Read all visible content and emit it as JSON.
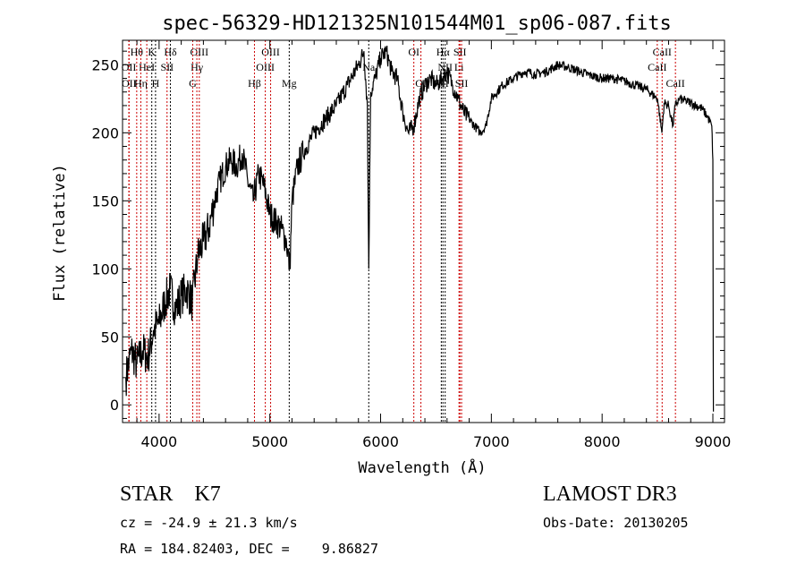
{
  "chart_data": {
    "type": "line",
    "title": "spec-56329-HD121325N101544M01_sp06-087.fits",
    "xlabel": "Wavelength (Å)",
    "ylabel": "Flux (relative)",
    "xlim": [
      3670,
      9105
    ],
    "ylim": [
      -13,
      268
    ],
    "xticks": [
      4000,
      5000,
      6000,
      7000,
      8000,
      9000
    ],
    "yticks": [
      0,
      50,
      100,
      150,
      200,
      250
    ],
    "grid": false,
    "series": [
      {
        "name": "spectrum",
        "color": "#000000",
        "points": [
          [
            3700,
            20
          ],
          [
            3750,
            40
          ],
          [
            3800,
            30
          ],
          [
            3850,
            40
          ],
          [
            3900,
            35
          ],
          [
            3950,
            55
          ],
          [
            4000,
            60
          ],
          [
            4050,
            75
          ],
          [
            4100,
            85
          ],
          [
            4150,
            70
          ],
          [
            4200,
            80
          ],
          [
            4250,
            85
          ],
          [
            4300,
            75
          ],
          [
            4350,
            110
          ],
          [
            4400,
            120
          ],
          [
            4450,
            130
          ],
          [
            4500,
            150
          ],
          [
            4550,
            165
          ],
          [
            4600,
            175
          ],
          [
            4650,
            180
          ],
          [
            4700,
            175
          ],
          [
            4750,
            185
          ],
          [
            4800,
            165
          ],
          [
            4850,
            150
          ],
          [
            4900,
            170
          ],
          [
            4950,
            160
          ],
          [
            5000,
            140
          ],
          [
            5100,
            130
          ],
          [
            5150,
            120
          ],
          [
            5180,
            100
          ],
          [
            5200,
            150
          ],
          [
            5250,
            175
          ],
          [
            5300,
            185
          ],
          [
            5400,
            200
          ],
          [
            5500,
            210
          ],
          [
            5600,
            220
          ],
          [
            5700,
            235
          ],
          [
            5800,
            250
          ],
          [
            5850,
            260
          ],
          [
            5880,
            220
          ],
          [
            5893,
            100
          ],
          [
            5910,
            230
          ],
          [
            5950,
            240
          ],
          [
            6000,
            255
          ],
          [
            6050,
            260
          ],
          [
            6100,
            245
          ],
          [
            6150,
            240
          ],
          [
            6200,
            215
          ],
          [
            6250,
            200
          ],
          [
            6300,
            205
          ],
          [
            6350,
            225
          ],
          [
            6400,
            235
          ],
          [
            6450,
            240
          ],
          [
            6500,
            235
          ],
          [
            6560,
            240
          ],
          [
            6600,
            245
          ],
          [
            6650,
            235
          ],
          [
            6700,
            225
          ],
          [
            6750,
            215
          ],
          [
            6800,
            210
          ],
          [
            6850,
            205
          ],
          [
            6900,
            200
          ],
          [
            6950,
            205
          ],
          [
            7000,
            225
          ],
          [
            7100,
            235
          ],
          [
            7200,
            240
          ],
          [
            7300,
            245
          ],
          [
            7400,
            243
          ],
          [
            7500,
            245
          ],
          [
            7600,
            250
          ],
          [
            7700,
            248
          ],
          [
            7800,
            245
          ],
          [
            7900,
            242
          ],
          [
            8000,
            240
          ],
          [
            8100,
            240
          ],
          [
            8200,
            238
          ],
          [
            8300,
            235
          ],
          [
            8400,
            232
          ],
          [
            8500,
            225
          ],
          [
            8540,
            200
          ],
          [
            8560,
            222
          ],
          [
            8600,
            220
          ],
          [
            8640,
            205
          ],
          [
            8660,
            220
          ],
          [
            8700,
            225
          ],
          [
            8800,
            222
          ],
          [
            8900,
            218
          ],
          [
            8950,
            212
          ],
          [
            8990,
            205
          ],
          [
            9000,
            180
          ],
          [
            9003,
            40
          ],
          [
            9005,
            -5
          ]
        ]
      }
    ],
    "line_markers": [
      {
        "label": "Hθ",
        "wavelength": 3798,
        "color": "#cc0000"
      },
      {
        "label": "K",
        "wavelength": 3934,
        "color": "#000000"
      },
      {
        "label": "Hδ",
        "wavelength": 4102,
        "color": "#000000"
      },
      {
        "label": "OIII",
        "wavelength": 4363,
        "color": "#cc0000"
      },
      {
        "label": "OIII",
        "wavelength": 5007,
        "color": "#cc0000"
      },
      {
        "label": "OI",
        "wavelength": 6300,
        "color": "#cc0000"
      },
      {
        "label": "Hα",
        "wavelength": 6563,
        "color": "#000000"
      },
      {
        "label": "SII",
        "wavelength": 6716,
        "color": "#cc0000"
      },
      {
        "label": "CaII",
        "wavelength": 8542,
        "color": "#cc0000"
      },
      {
        "label": "OII",
        "wavelength": 3727,
        "color": "#cc0000"
      },
      {
        "label": "HeI",
        "wavelength": 3889,
        "color": "#cc0000"
      },
      {
        "label": "SII",
        "wavelength": 4072,
        "color": "#cc0000"
      },
      {
        "label": "Hγ",
        "wavelength": 4341,
        "color": "#cc0000"
      },
      {
        "label": "OIII",
        "wavelength": 4959,
        "color": "#cc0000"
      },
      {
        "label": "Na",
        "wavelength": 5893,
        "color": "#000000"
      },
      {
        "label": "NII",
        "wavelength": 6583,
        "color": "#000000"
      },
      {
        "label": "Li",
        "wavelength": 6708,
        "color": "#cc0000"
      },
      {
        "label": "CaII",
        "wavelength": 8498,
        "color": "#cc0000"
      },
      {
        "label": "OII",
        "wavelength": 3729,
        "color": "#cc0000"
      },
      {
        "label": "Hη",
        "wavelength": 3835,
        "color": "#cc0000"
      },
      {
        "label": "H",
        "wavelength": 3968,
        "color": "#000000"
      },
      {
        "label": "G",
        "wavelength": 4304,
        "color": "#cc0000"
      },
      {
        "label": "Hβ",
        "wavelength": 4861,
        "color": "#cc0000"
      },
      {
        "label": "Mg",
        "wavelength": 5175,
        "color": "#000000"
      },
      {
        "label": "OI",
        "wavelength": 6364,
        "color": "#cc0000"
      },
      {
        "label": "NII",
        "wavelength": 6548,
        "color": "#000000"
      },
      {
        "label": "SII",
        "wavelength": 6731,
        "color": "#cc0000"
      },
      {
        "label": "CaII",
        "wavelength": 8662,
        "color": "#cc0000"
      }
    ]
  },
  "info": {
    "class": "STAR    K7",
    "cz": "cz = -24.9 ± 21.3 km/s",
    "coords": "RA = 184.82403, DEC =    9.86827",
    "survey": "LAMOST DR3",
    "obs_date": "Obs-Date: 20130205"
  }
}
